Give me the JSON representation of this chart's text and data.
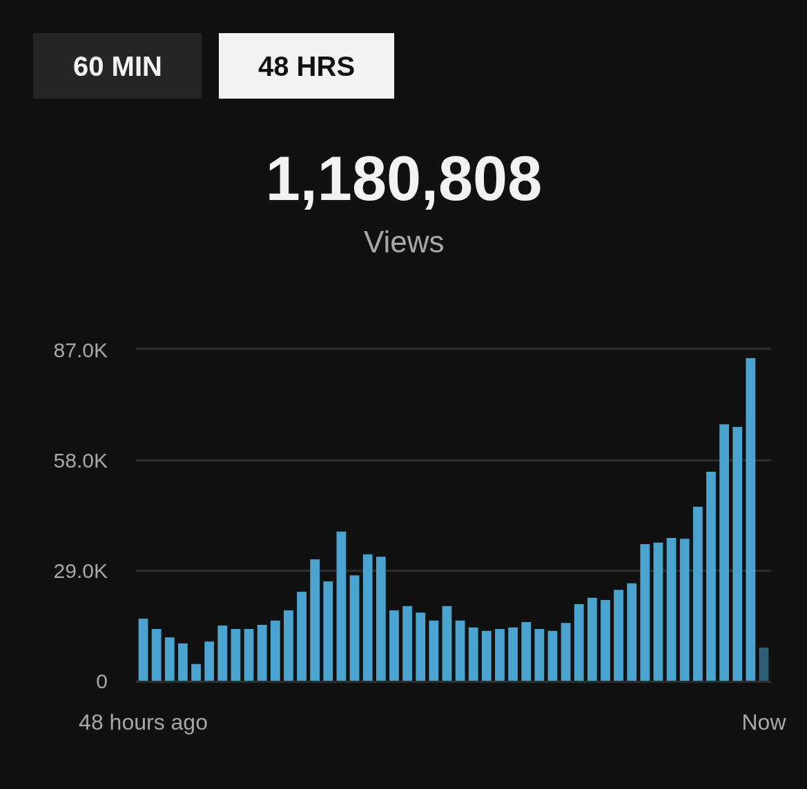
{
  "chart_data": {
    "type": "bar",
    "title": "1,180,808",
    "subtitle": "Views",
    "annotations": [
      "60 MIN",
      "48 HRS"
    ],
    "categories": [
      "48 hours ago",
      null,
      null,
      null,
      null,
      null,
      null,
      null,
      null,
      null,
      null,
      null,
      null,
      null,
      null,
      null,
      null,
      null,
      null,
      null,
      null,
      null,
      null,
      null,
      null,
      null,
      null,
      null,
      null,
      null,
      null,
      null,
      null,
      null,
      null,
      null,
      null,
      null,
      null,
      null,
      null,
      null,
      null,
      null,
      null,
      null,
      null,
      "Now"
    ],
    "values": [
      16300,
      13600,
      11400,
      9800,
      4400,
      10300,
      14500,
      13600,
      13600,
      14700,
      15800,
      18500,
      23400,
      31900,
      26100,
      39200,
      27700,
      33200,
      32600,
      18500,
      19600,
      17900,
      15800,
      19600,
      15800,
      14000,
      13100,
      13600,
      14000,
      15400,
      13600,
      13100,
      15200,
      20100,
      21800,
      21200,
      23900,
      25600,
      35900,
      36300,
      37500,
      37300,
      45700,
      54900,
      67400,
      66700,
      84800,
      8700
    ],
    "colors": [
      "#4ba3cf",
      "#4ba3cf",
      "#4ba3cf",
      "#4ba3cf",
      "#4ba3cf",
      "#4ba3cf",
      "#4ba3cf",
      "#4ba3cf",
      "#4ba3cf",
      "#4ba3cf",
      "#4ba3cf",
      "#4ba3cf",
      "#4ba3cf",
      "#4ba3cf",
      "#4ba3cf",
      "#4ba3cf",
      "#4ba3cf",
      "#4ba3cf",
      "#4ba3cf",
      "#4ba3cf",
      "#4ba3cf",
      "#4ba3cf",
      "#4ba3cf",
      "#4ba3cf",
      "#4ba3cf",
      "#4ba3cf",
      "#4ba3cf",
      "#4ba3cf",
      "#4ba3cf",
      "#4ba3cf",
      "#4ba3cf",
      "#4ba3cf",
      "#4ba3cf",
      "#4ba3cf",
      "#4ba3cf",
      "#4ba3cf",
      "#4ba3cf",
      "#4ba3cf",
      "#4ba3cf",
      "#4ba3cf",
      "#4ba3cf",
      "#4ba3cf",
      "#4ba3cf",
      "#4ba3cf",
      "#4ba3cf",
      "#4ba3cf",
      "#4ba3cf",
      "#2e5f78"
    ],
    "ylim": [
      0,
      87000
    ],
    "yticks": [
      0,
      {
        "value": 29000,
        "label": "29.0K"
      },
      {
        "value": 58000,
        "label": "58.0K"
      },
      {
        "value": 87000,
        "label": "87.0K"
      }
    ],
    "grid": "y",
    "legend": false
  }
}
